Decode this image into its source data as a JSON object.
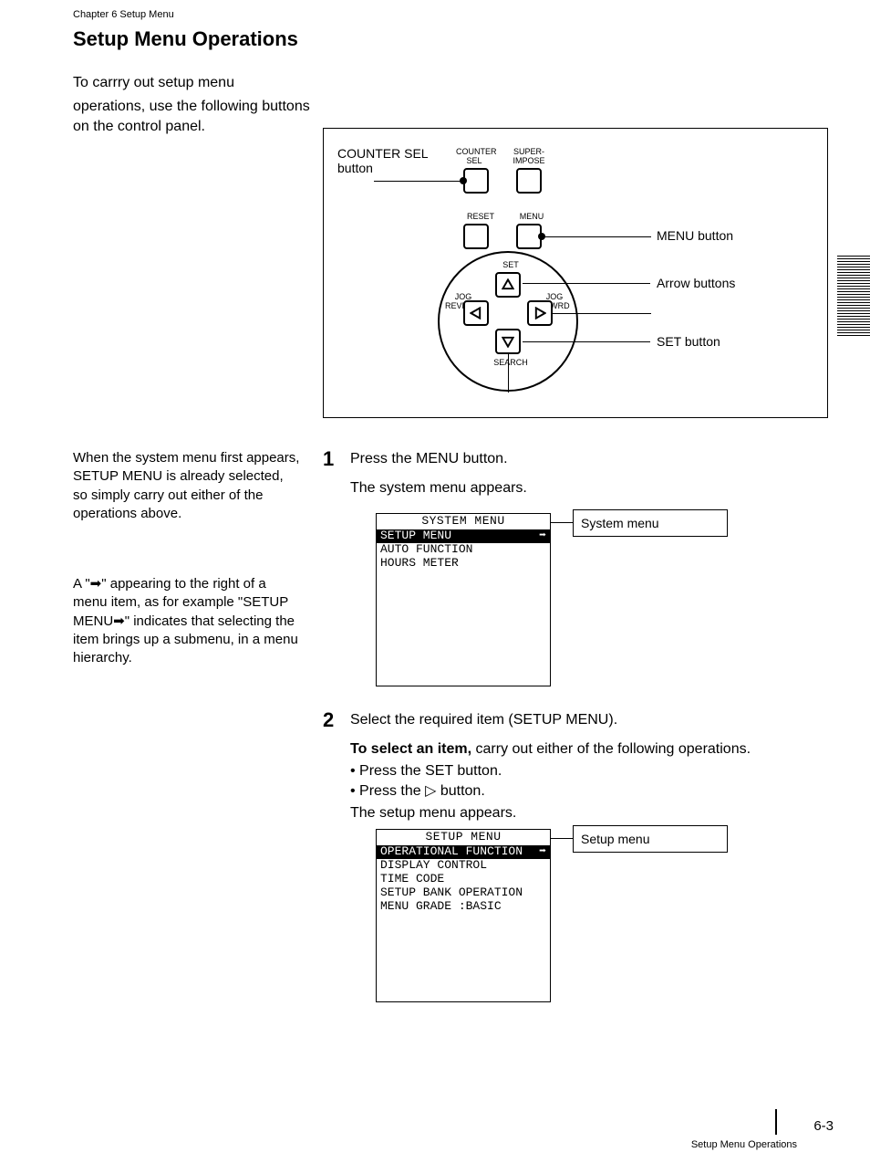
{
  "chapter_label": "Chapter 6 Setup Menu",
  "heading": "Setup Menu Operations",
  "intro_line1": "To carrry out setup menu",
  "intro_line2": "operations, use the following buttons on the control panel.",
  "panel": {
    "counter_sel_label": "COUNTER\nSEL",
    "superimpose_label": "SUPER-\nIMPOSE",
    "counter_sel_button": "COUNTER SEL button",
    "reset_label": "RESET",
    "menu_label": "MENU",
    "menu_button": "MENU button",
    "set_label": "SET",
    "search_label": "SEARCH",
    "arrow_buttons": "Arrow buttons",
    "set_button": "SET button",
    "jog_reverse": "JOG\nREVERSE",
    "jog_forward": "JOG\nFRWRD"
  },
  "step1": {
    "num": "1",
    "text": "Press the MENU button.",
    "result": "The system menu appears.",
    "screen_title": "SYSTEM MENU",
    "rows": [
      "SETUP MENU",
      "AUTO FUNCTION",
      "HOURS METER"
    ],
    "callout": "System menu"
  },
  "step2": {
    "num": "2",
    "text_a": "Select the required item (SETUP MENU).",
    "substep_label": "To select an item,",
    "substep_text": "carry out either of the following operations.",
    "bullets": [
      "Press the SET button.",
      "Press the {R} button."
    ],
    "result": "The setup menu appears.",
    "screen_title": "SETUP MENU",
    "rows": [
      "OPERATIONAL FUNCTION",
      "DISPLAY CONTROL",
      "TIME CODE",
      "SETUP BANK OPERATION",
      "",
      "MENU GRADE      :BASIC"
    ],
    "callout": "Setup menu"
  },
  "note1": "When the system menu first appears, SETUP MENU is already selected, so simply carry out either of the operations above.",
  "note2": "A \"{R}\" appearing to the right of a menu item, as for example \"SETUP MENU{R}\" indicates that selecting the item brings up a submenu, in a menu hierarchy.",
  "footer_text": "Setup Menu Operations",
  "footer_page": "6-3",
  "colors": {
    "ink": "#000000",
    "bg": "#ffffff"
  }
}
